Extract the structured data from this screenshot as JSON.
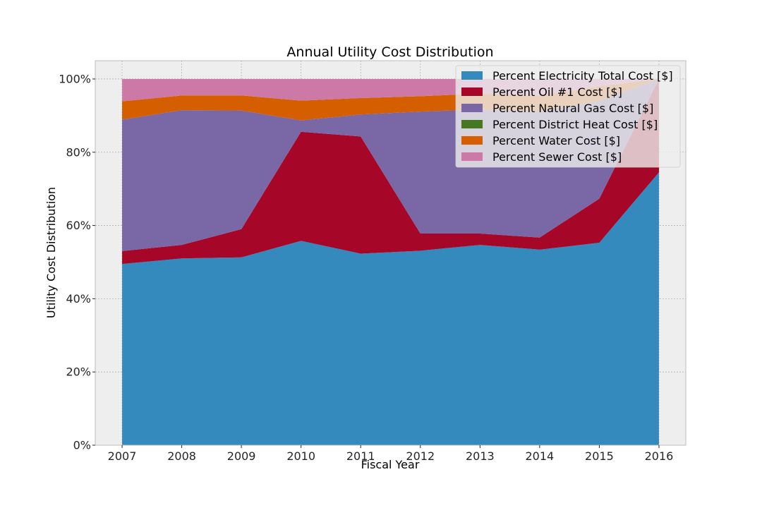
{
  "chart_data": {
    "type": "area",
    "stacked": true,
    "title": "Annual Utility Cost Distribution",
    "xlabel": "Fiscal Year",
    "ylabel": "Utility Cost Distribution",
    "x": [
      2007,
      2008,
      2009,
      2010,
      2011,
      2012,
      2013,
      2014,
      2015,
      2016
    ],
    "xlim": [
      2006.55,
      2016.45
    ],
    "ylim": [
      0,
      1.05
    ],
    "yticks": [
      0,
      0.2,
      0.4,
      0.6,
      0.8,
      1.0
    ],
    "ytick_labels": [
      "0%",
      "20%",
      "40%",
      "60%",
      "80%",
      "100%"
    ],
    "grid": true,
    "legend_position": "top-right",
    "series": [
      {
        "name": "Percent Electricity Total Cost [$]",
        "color": "#348abd",
        "values": [
          0.495,
          0.51,
          0.513,
          0.558,
          0.523,
          0.531,
          0.547,
          0.534,
          0.553,
          0.745
        ]
      },
      {
        "name": "Percent Oil #1 Cost [$]",
        "color": "#a60628",
        "values": [
          0.035,
          0.037,
          0.077,
          0.298,
          0.32,
          0.047,
          0.031,
          0.033,
          0.12,
          0.255
        ]
      },
      {
        "name": "Percent Natural Gas Cost [$]",
        "color": "#7a68a6",
        "values": [
          0.359,
          0.368,
          0.324,
          0.031,
          0.06,
          0.333,
          0.339,
          0.344,
          0.267,
          0.0
        ]
      },
      {
        "name": "Percent District Heat Cost [$]",
        "color": "#467821",
        "values": [
          0,
          0,
          0,
          0,
          0,
          0,
          0,
          0,
          0,
          0
        ]
      },
      {
        "name": "Percent Water Cost [$]",
        "color": "#d55e00",
        "values": [
          0.05,
          0.04,
          0.041,
          0.054,
          0.045,
          0.042,
          0.043,
          0.043,
          0.04,
          0.0
        ]
      },
      {
        "name": "Percent Sewer Cost [$]",
        "color": "#cc79a7",
        "values": [
          0.061,
          0.045,
          0.045,
          0.059,
          0.052,
          0.047,
          0.04,
          0.046,
          0.02,
          0.0
        ]
      }
    ]
  }
}
